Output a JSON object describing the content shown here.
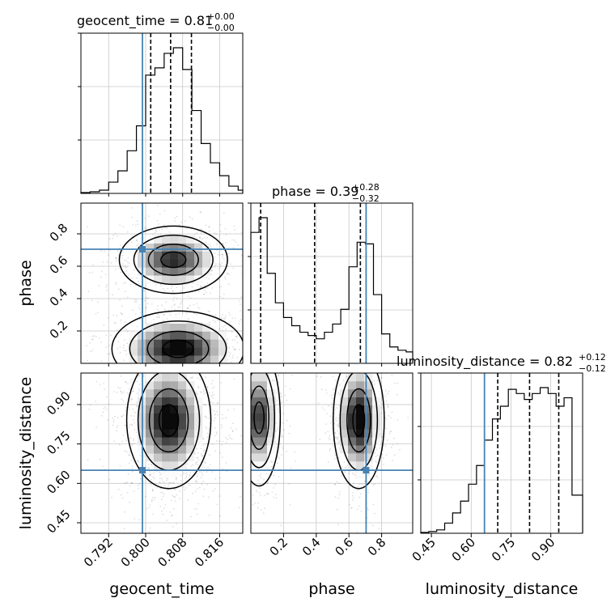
{
  "chart_data": {
    "type": "corner",
    "truth_color": "#4682b4",
    "parameters": [
      {
        "name": "geocent_time",
        "axis_label": "geocent_time",
        "range": [
          0.786,
          0.821
        ],
        "ticks": [
          "0.792",
          "0.800",
          "0.808",
          "0.816"
        ],
        "truth": 0.7993,
        "median": 0.8054,
        "q16": 0.8011,
        "q84": 0.8099,
        "title": {
          "main": "geocent_time = 0.81",
          "plus": "+0.00",
          "minus": "−0.00"
        },
        "hist_bins": [
          0.786,
          0.788,
          0.79,
          0.792,
          0.794,
          0.796,
          0.798,
          0.8,
          0.802,
          0.804,
          0.806,
          0.808,
          0.81,
          0.812,
          0.814,
          0.816,
          0.818,
          0.82
        ],
        "hist_counts": [
          1,
          2,
          4,
          14,
          28,
          53,
          84,
          147,
          156,
          174,
          181,
          154,
          103,
          62,
          38,
          22,
          9,
          4
        ]
      },
      {
        "name": "phase",
        "axis_label": "phase",
        "range": [
          0.0,
          0.99
        ],
        "ticks": [
          "0.2",
          "0.4",
          "0.6",
          "0.8"
        ],
        "truth": 0.705,
        "median": 0.39,
        "q16": 0.06,
        "q84": 0.67,
        "title": {
          "main": "phase = 0.39",
          "plus": "+0.28",
          "minus": "−0.32"
        },
        "hist_bins": [
          0.0,
          0.05,
          0.1,
          0.15,
          0.2,
          0.25,
          0.3,
          0.35,
          0.4,
          0.45,
          0.5,
          0.55,
          0.6,
          0.65,
          0.7,
          0.75,
          0.8,
          0.85,
          0.9,
          0.95
        ],
        "hist_counts": [
          160,
          178,
          110,
          74,
          56,
          46,
          38,
          34,
          30,
          38,
          48,
          66,
          118,
          148,
          146,
          84,
          36,
          20,
          16,
          14
        ]
      },
      {
        "name": "luminosity_distance",
        "axis_label": "luminosity_distance",
        "range": [
          0.41,
          1.02
        ],
        "ticks": [
          "0.45",
          "0.60",
          "0.75",
          "0.90"
        ],
        "truth": 0.65,
        "median": 0.82,
        "q16": 0.7,
        "q84": 0.93,
        "title": {
          "main": "luminosity_distance = 0.82",
          "plus": "+0.12",
          "minus": "−0.12"
        },
        "hist_bins": [
          0.41,
          0.44,
          0.47,
          0.5,
          0.53,
          0.56,
          0.59,
          0.62,
          0.65,
          0.68,
          0.71,
          0.74,
          0.77,
          0.8,
          0.83,
          0.86,
          0.89,
          0.92,
          0.95,
          0.98
        ],
        "hist_counts": [
          1,
          2,
          4,
          12,
          24,
          38,
          58,
          80,
          110,
          135,
          150,
          170,
          165,
          158,
          165,
          172,
          165,
          150,
          160,
          45
        ]
      }
    ],
    "joint": {
      "geocent_time__phase": {
        "modes": [
          {
            "x": 0.806,
            "y": 0.64,
            "sx": 0.0045,
            "sy": 0.08,
            "w": 0.45
          },
          {
            "x": 0.807,
            "y": 0.09,
            "sx": 0.0055,
            "sy": 0.09,
            "w": 0.55
          }
        ]
      },
      "geocent_time__luminosity_distance": {
        "modes": [
          {
            "x": 0.805,
            "y": 0.84,
            "sx": 0.0035,
            "sy": 0.1,
            "w": 1.0
          }
        ]
      },
      "phase__luminosity_distance": {
        "modes": [
          {
            "x": 0.05,
            "y": 0.85,
            "sx": 0.05,
            "sy": 0.1,
            "w": 0.45
          },
          {
            "x": 0.66,
            "y": 0.84,
            "sx": 0.06,
            "sy": 0.1,
            "w": 0.55
          }
        ]
      }
    },
    "grid": true
  }
}
